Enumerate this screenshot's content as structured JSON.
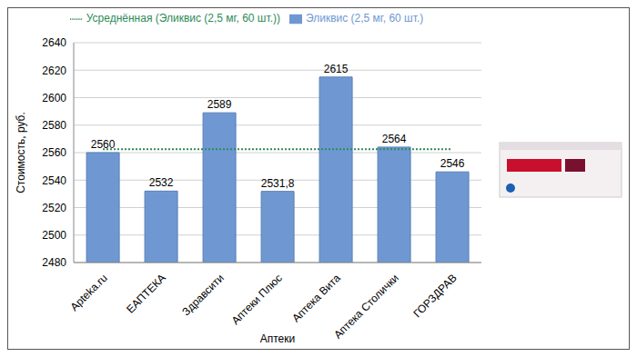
{
  "chart_data": {
    "type": "bar",
    "categories": [
      "Apteka.ru",
      "ЕАПТЕКА",
      "Здравсити",
      "Аптеки Плюс",
      "Аптека Вита",
      "Аптека Столички",
      "ГОРЗДРАВ"
    ],
    "series": [
      {
        "name": "Эликвис (2,5 мг, 60 шт.)",
        "type": "bar",
        "color": "#6f98d3",
        "values": [
          2560,
          2532,
          2589,
          2531.8,
          2615,
          2564,
          2546
        ],
        "value_labels": [
          "2560",
          "2532",
          "2589",
          "2531,8",
          "2615",
          "2564",
          "2546"
        ]
      },
      {
        "name": "Усреднённая (Эликвис (2,5 мг, 60 шт.))",
        "type": "line",
        "line_style": "dotted",
        "color": "#2e8b57",
        "values": [
          2562.5,
          2562.5,
          2562.5,
          2562.5,
          2562.5,
          2562.5,
          2562.5
        ]
      }
    ],
    "x_label": "Аптеки",
    "y_label": "Стоимость, руб.",
    "ylim": [
      2480,
      2640
    ],
    "yticks": [
      2480,
      2500,
      2520,
      2540,
      2560,
      2580,
      2600,
      2620,
      2640
    ],
    "grid": true,
    "legend": "top",
    "data_labels": true
  }
}
